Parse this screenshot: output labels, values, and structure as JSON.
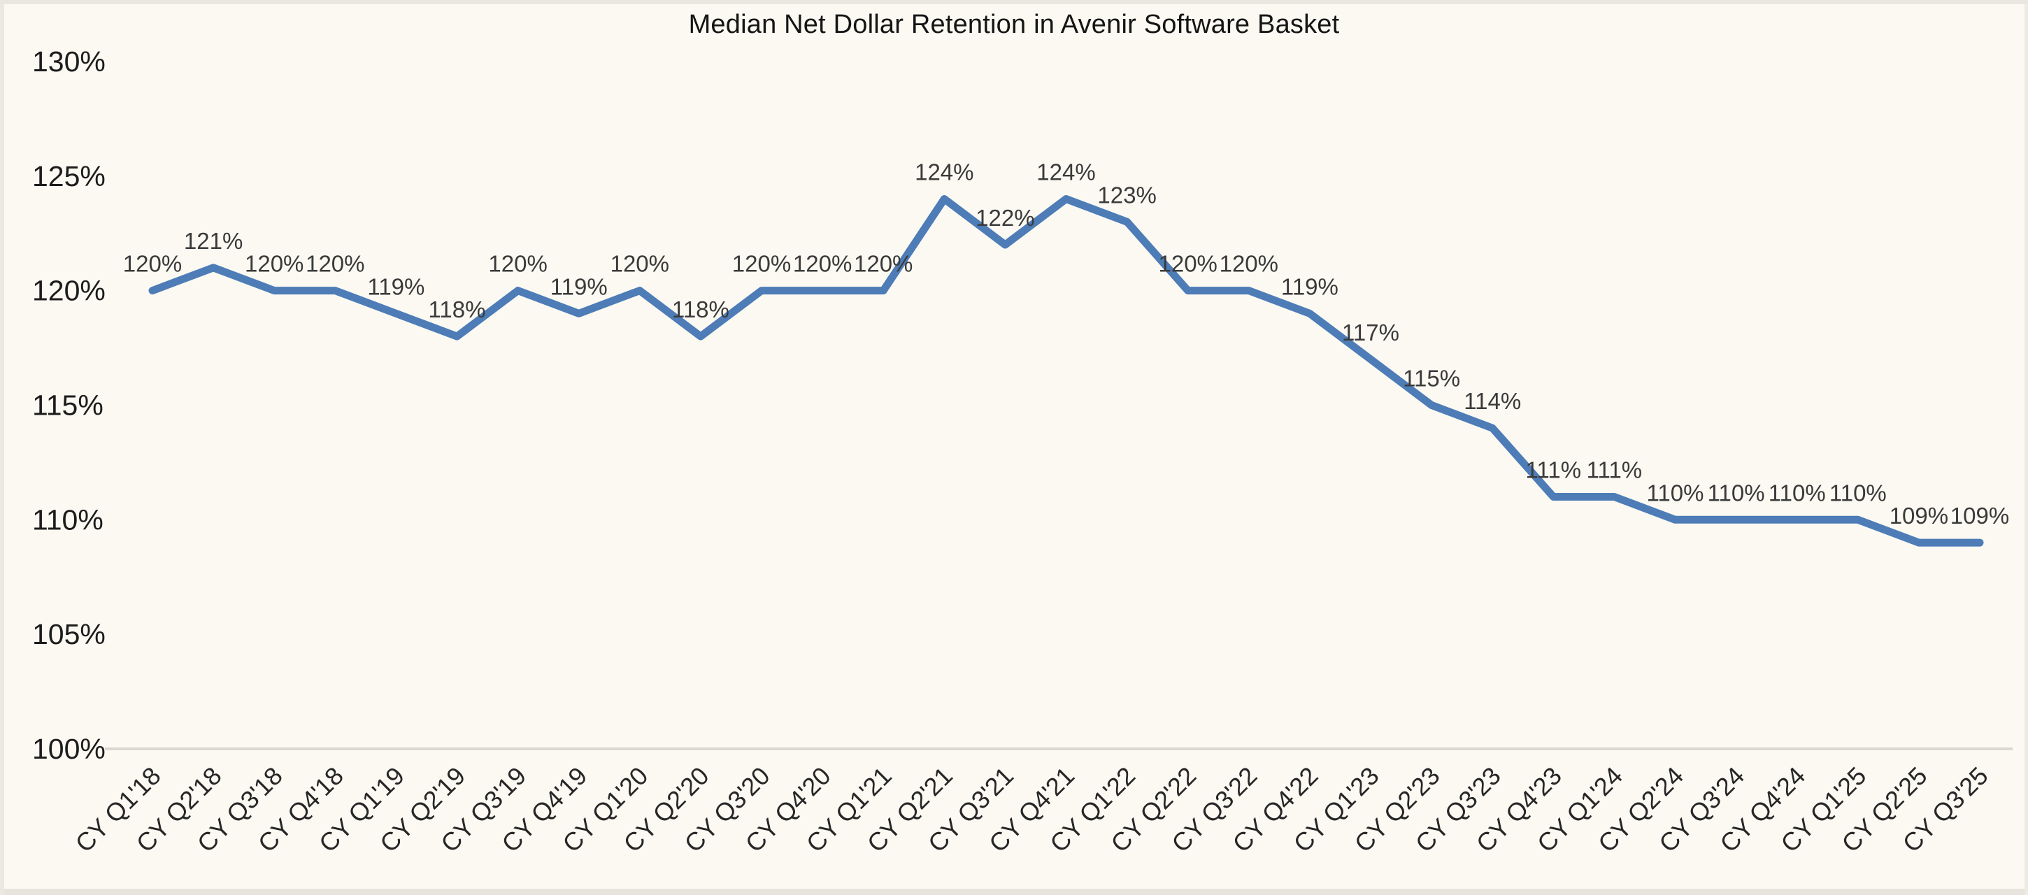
{
  "window": {
    "background_color": "#fbf9f2",
    "frame_edge_color": "#e8e6df"
  },
  "chart_data": {
    "type": "line",
    "title": "Median Net Dollar Retention in Avenir Software Basket",
    "categories": [
      "CY Q1'18",
      "CY Q2'18",
      "CY Q3'18",
      "CY Q4'18",
      "CY Q1'19",
      "CY Q2'19",
      "CY Q3'19",
      "CY Q4'19",
      "CY Q1'20",
      "CY Q2'20",
      "CY Q3'20",
      "CY Q4'20",
      "CY Q1'21",
      "CY Q2'21",
      "CY Q3'21",
      "CY Q4'21",
      "CY Q1'22",
      "CY Q2'22",
      "CY Q3'22",
      "CY Q4'22",
      "CY Q1'23",
      "CY Q2'23",
      "CY Q3'23",
      "CY Q4'23",
      "CY Q1'24",
      "CY Q2'24",
      "CY Q3'24",
      "CY Q4'24",
      "CY Q1'25",
      "CY Q2'25",
      "CY Q3'25"
    ],
    "series": [
      {
        "name": "Median Net Dollar Retention",
        "values": [
          120,
          121,
          120,
          120,
          119,
          118,
          120,
          119,
          120,
          118,
          120,
          120,
          120,
          124,
          122,
          124,
          123,
          120,
          120,
          119,
          117,
          115,
          114,
          111,
          111,
          110,
          110,
          110,
          110,
          109,
          109
        ],
        "data_labels": [
          "120%",
          "121%",
          "120%",
          "120%",
          "119%",
          "118%",
          "120%",
          "119%",
          "120%",
          "118%",
          "120%",
          "120%",
          "120%",
          "124%",
          "122%",
          "124%",
          "123%",
          "120%",
          "120%",
          "119%",
          "117%",
          "115%",
          "114%",
          "111%",
          "111%",
          "110%",
          "110%",
          "110%",
          "110%",
          "109%",
          "109%"
        ],
        "color": "#4d7cb7"
      }
    ],
    "xlabel": "",
    "ylabel": "",
    "y_axis": {
      "min": 100,
      "max": 130,
      "step": 5,
      "tick_labels": [
        "130%",
        "125%",
        "120%",
        "115%",
        "110%",
        "105%",
        "100%"
      ],
      "tick_format": "percent"
    },
    "x_axis": {
      "tick_rotation_degrees": 45
    },
    "gridlines": {
      "horizontal_at": [
        "100%"
      ],
      "color": "#dbd9d1"
    },
    "legend": {
      "visible": false
    },
    "data_label_position": "above",
    "text_colors": {
      "title": "#151515",
      "y_ticks": "#1c1c1c",
      "x_ticks": "#262626",
      "data_labels": "#3a3a3a"
    }
  }
}
